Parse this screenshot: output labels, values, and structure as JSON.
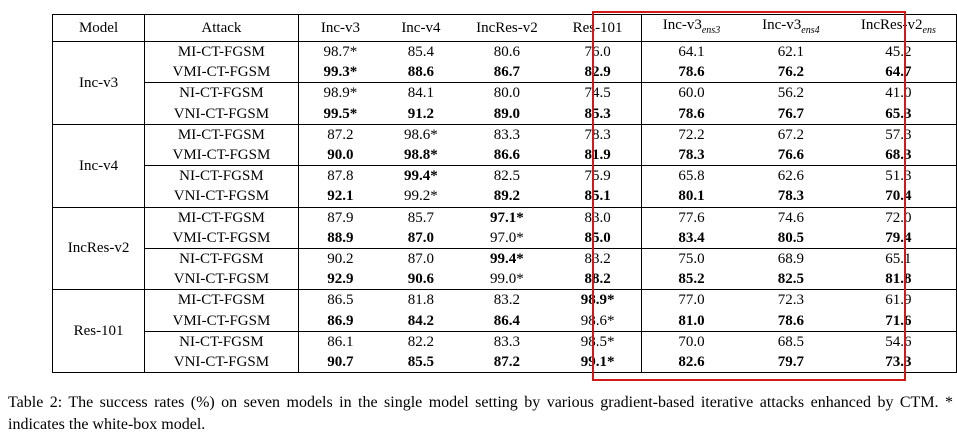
{
  "table": {
    "columns": [
      "Model",
      "Attack",
      "Inc-v3",
      "Inc-v4",
      "IncRes-v2",
      "Res-101",
      "Inc-v3",
      "Inc-v3",
      "IncRes-v2"
    ],
    "column_subscripts": [
      "",
      "",
      "",
      "",
      "",
      "",
      "ens3",
      "ens4",
      "ens"
    ],
    "groups": [
      {
        "model": "Inc-v3",
        "rows": [
          {
            "attack": "MI-CT-FGSM",
            "values": [
              "98.7*",
              "85.4",
              "80.6",
              "76.0",
              "64.1",
              "62.1",
              "45.2"
            ],
            "bold": [
              false,
              false,
              false,
              false,
              false,
              false,
              false
            ]
          },
          {
            "attack": "VMI-CT-FGSM",
            "values": [
              "99.3*",
              "88.6",
              "86.7",
              "82.9",
              "78.6",
              "76.2",
              "64.7"
            ],
            "bold": [
              true,
              true,
              true,
              true,
              true,
              true,
              true
            ]
          },
          {
            "attack": "NI-CT-FGSM",
            "values": [
              "98.9*",
              "84.1",
              "80.0",
              "74.5",
              "60.0",
              "56.2",
              "41.0"
            ],
            "bold": [
              false,
              false,
              false,
              false,
              false,
              false,
              false
            ]
          },
          {
            "attack": "VNI-CT-FGSM",
            "values": [
              "99.5*",
              "91.2",
              "89.0",
              "85.3",
              "78.6",
              "76.7",
              "65.3"
            ],
            "bold": [
              true,
              true,
              true,
              true,
              true,
              true,
              true
            ]
          }
        ]
      },
      {
        "model": "Inc-v4",
        "rows": [
          {
            "attack": "MI-CT-FGSM",
            "values": [
              "87.2",
              "98.6*",
              "83.3",
              "78.3",
              "72.2",
              "67.2",
              "57.3"
            ],
            "bold": [
              false,
              false,
              false,
              false,
              false,
              false,
              false
            ]
          },
          {
            "attack": "VMI-CT-FGSM",
            "values": [
              "90.0",
              "98.8*",
              "86.6",
              "81.9",
              "78.3",
              "76.6",
              "68.3"
            ],
            "bold": [
              true,
              true,
              true,
              true,
              true,
              true,
              true
            ]
          },
          {
            "attack": "NI-CT-FGSM",
            "values": [
              "87.8",
              "99.4*",
              "82.5",
              "75.9",
              "65.8",
              "62.6",
              "51.3"
            ],
            "bold": [
              false,
              true,
              false,
              false,
              false,
              false,
              false
            ]
          },
          {
            "attack": "VNI-CT-FGSM",
            "values": [
              "92.1",
              "99.2*",
              "89.2",
              "85.1",
              "80.1",
              "78.3",
              "70.4"
            ],
            "bold": [
              true,
              false,
              true,
              true,
              true,
              true,
              true
            ]
          }
        ]
      },
      {
        "model": "IncRes-v2",
        "rows": [
          {
            "attack": "MI-CT-FGSM",
            "values": [
              "87.9",
              "85.7",
              "97.1*",
              "83.0",
              "77.6",
              "74.6",
              "72.0"
            ],
            "bold": [
              false,
              false,
              true,
              false,
              false,
              false,
              false
            ]
          },
          {
            "attack": "VMI-CT-FGSM",
            "values": [
              "88.9",
              "87.0",
              "97.0*",
              "85.0",
              "83.4",
              "80.5",
              "79.4"
            ],
            "bold": [
              true,
              true,
              false,
              true,
              true,
              true,
              true
            ]
          },
          {
            "attack": "NI-CT-FGSM",
            "values": [
              "90.2",
              "87.0",
              "99.4*",
              "83.2",
              "75.0",
              "68.9",
              "65.1"
            ],
            "bold": [
              false,
              false,
              true,
              false,
              false,
              false,
              false
            ]
          },
          {
            "attack": "VNI-CT-FGSM",
            "values": [
              "92.9",
              "90.6",
              "99.0*",
              "88.2",
              "85.2",
              "82.5",
              "81.8"
            ],
            "bold": [
              true,
              true,
              false,
              true,
              true,
              true,
              true
            ]
          }
        ]
      },
      {
        "model": "Res-101",
        "rows": [
          {
            "attack": "MI-CT-FGSM",
            "values": [
              "86.5",
              "81.8",
              "83.2",
              "98.9*",
              "77.0",
              "72.3",
              "61.9"
            ],
            "bold": [
              false,
              false,
              false,
              true,
              false,
              false,
              false
            ]
          },
          {
            "attack": "VMI-CT-FGSM",
            "values": [
              "86.9",
              "84.2",
              "86.4",
              "98.6*",
              "81.0",
              "78.6",
              "71.6"
            ],
            "bold": [
              true,
              true,
              true,
              false,
              true,
              true,
              true
            ]
          },
          {
            "attack": "NI-CT-FGSM",
            "values": [
              "86.1",
              "82.2",
              "83.3",
              "98.5*",
              "70.0",
              "68.5",
              "54.6"
            ],
            "bold": [
              false,
              false,
              false,
              false,
              false,
              false,
              false
            ]
          },
          {
            "attack": "VNI-CT-FGSM",
            "values": [
              "90.7",
              "85.5",
              "87.2",
              "99.1*",
              "82.6",
              "79.7",
              "73.3"
            ],
            "bold": [
              true,
              true,
              true,
              true,
              true,
              true,
              true
            ]
          }
        ]
      }
    ],
    "highlight_color": "#d01a1a"
  },
  "caption": "Table 2: The success rates (%) on seven models in the single model setting by various gradient-based iterative attacks enhanced by CTM. * indicates the white-box model."
}
